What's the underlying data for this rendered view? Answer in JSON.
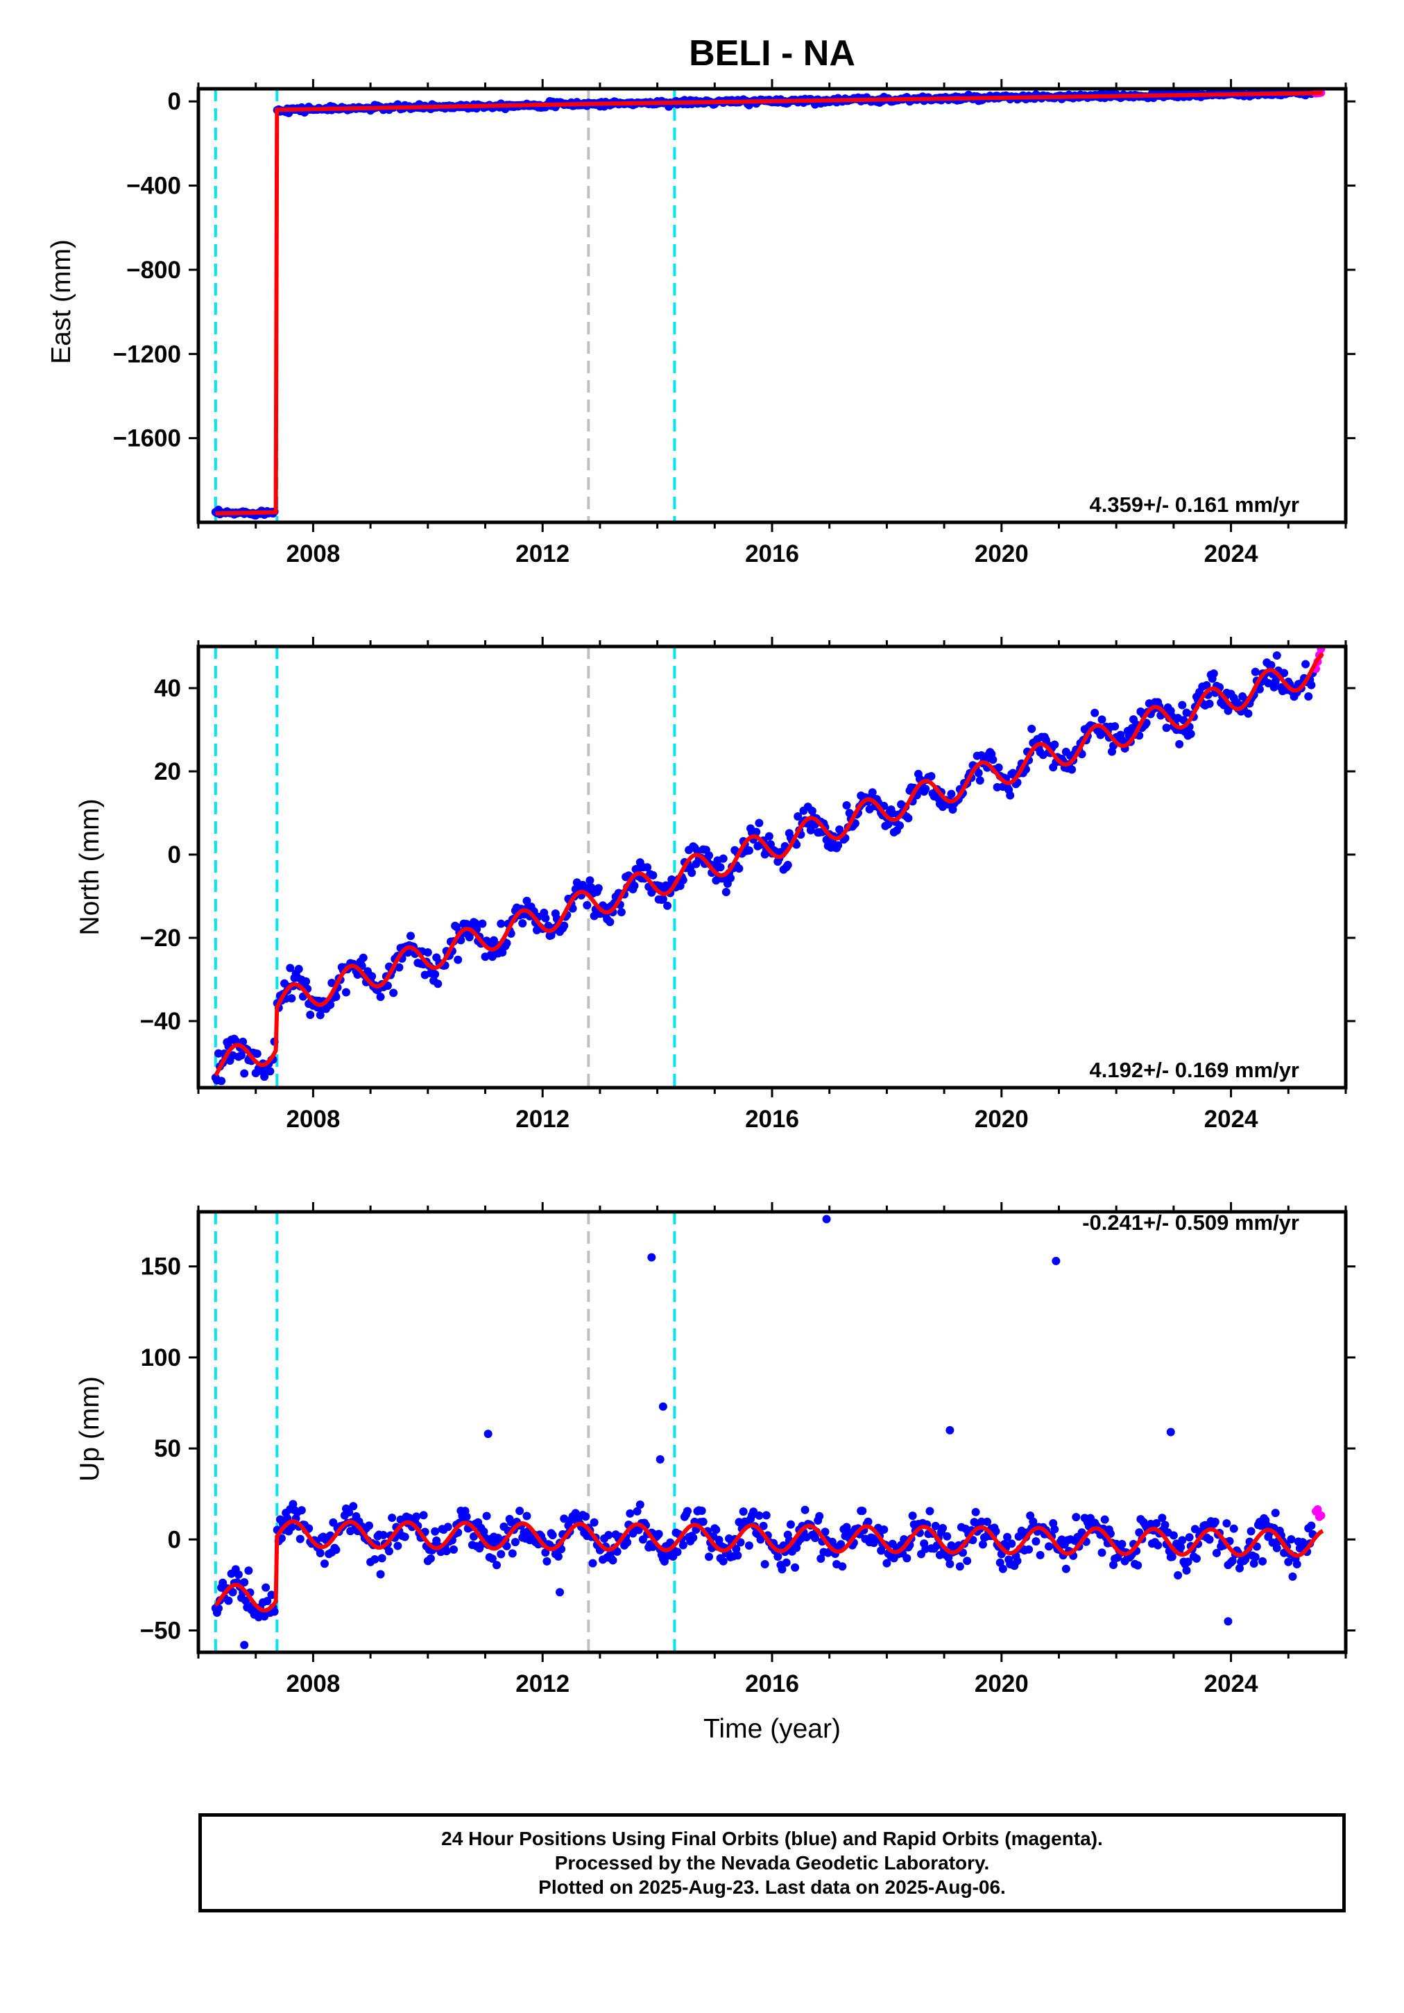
{
  "title": "BELI - NA",
  "colors": {
    "final_orbits": "#0000ff",
    "rapid_orbits": "#ff00ff",
    "model": "#ff0000",
    "equipment_change": "#00e5ee",
    "other_event": "#c0c0c0"
  },
  "x_axis": {
    "label": "Time (year)",
    "ticks": [
      "2008",
      "2012",
      "2016",
      "2020",
      "2024"
    ],
    "range": [
      2006.0,
      2026.0
    ]
  },
  "events": [
    {
      "x": 2006.3,
      "type": "equipment_change"
    },
    {
      "x": 2007.37,
      "type": "equipment_change"
    },
    {
      "x": 2012.8,
      "type": "other_event"
    },
    {
      "x": 2014.3,
      "type": "equipment_change"
    }
  ],
  "chart_data": [
    {
      "type": "scatter",
      "ylabel": "East (mm)",
      "yticks": [
        "0",
        "−400",
        "−800",
        "−1200",
        "−1600"
      ],
      "ylim": [
        -2000,
        60
      ],
      "rate": "4.359+/- 0.161 mm/yr",
      "rate_position": "bottom-right",
      "segments": [
        {
          "x": [
            2006.3,
            2007.35
          ],
          "y": [
            -1958,
            -1952
          ]
        },
        {
          "x": [
            2007.37,
            2012.8,
            2025.6
          ],
          "y": [
            -40,
            -12,
            40
          ]
        }
      ]
    },
    {
      "type": "scatter",
      "ylabel": "North (mm)",
      "yticks": [
        "40",
        "20",
        "0",
        "−20",
        "−40"
      ],
      "ylim": [
        -56,
        50
      ],
      "rate": "4.192+/- 0.169 mm/yr",
      "rate_position": "bottom-right",
      "segments": [
        {
          "x": [
            2006.3,
            2007.35
          ],
          "y": [
            -51,
            -46
          ]
        },
        {
          "x": [
            2007.37,
            2025.6
          ],
          "y": [
            -36,
            45
          ]
        }
      ],
      "annual_amplitude": 3.5
    },
    {
      "type": "scatter",
      "ylabel": "Up (mm)",
      "yticks": [
        "150",
        "100",
        "50",
        "0",
        "−50"
      ],
      "ylim": [
        -62,
        180
      ],
      "rate": "-0.241+/- 0.509 mm/yr",
      "rate_position": "top-right",
      "segments": [
        {
          "x": [
            2006.3,
            2007.35
          ],
          "y": [
            -32,
            -32
          ]
        },
        {
          "x": [
            2007.37,
            2025.6
          ],
          "y": [
            3,
            -2
          ]
        }
      ],
      "annual_amplitude": 7,
      "outliers": [
        {
          "x": 2013.9,
          "y": 155
        },
        {
          "x": 2016.95,
          "y": 176
        },
        {
          "x": 2020.95,
          "y": 153
        },
        {
          "x": 2014.1,
          "y": 73
        },
        {
          "x": 2011.05,
          "y": 58
        },
        {
          "x": 2019.1,
          "y": 60
        },
        {
          "x": 2022.95,
          "y": 59
        },
        {
          "x": 2014.05,
          "y": 44
        },
        {
          "x": 2012.3,
          "y": -29
        },
        {
          "x": 2023.95,
          "y": -45
        },
        {
          "x": 2006.8,
          "y": -58
        }
      ]
    }
  ],
  "footer": {
    "line1": "24 Hour Positions Using Final Orbits (blue) and Rapid Orbits (magenta).",
    "line2": "Processed by the Nevada Geodetic Laboratory.",
    "line3": "Plotted on 2025-Aug-23. Last data on 2025-Aug-06."
  }
}
